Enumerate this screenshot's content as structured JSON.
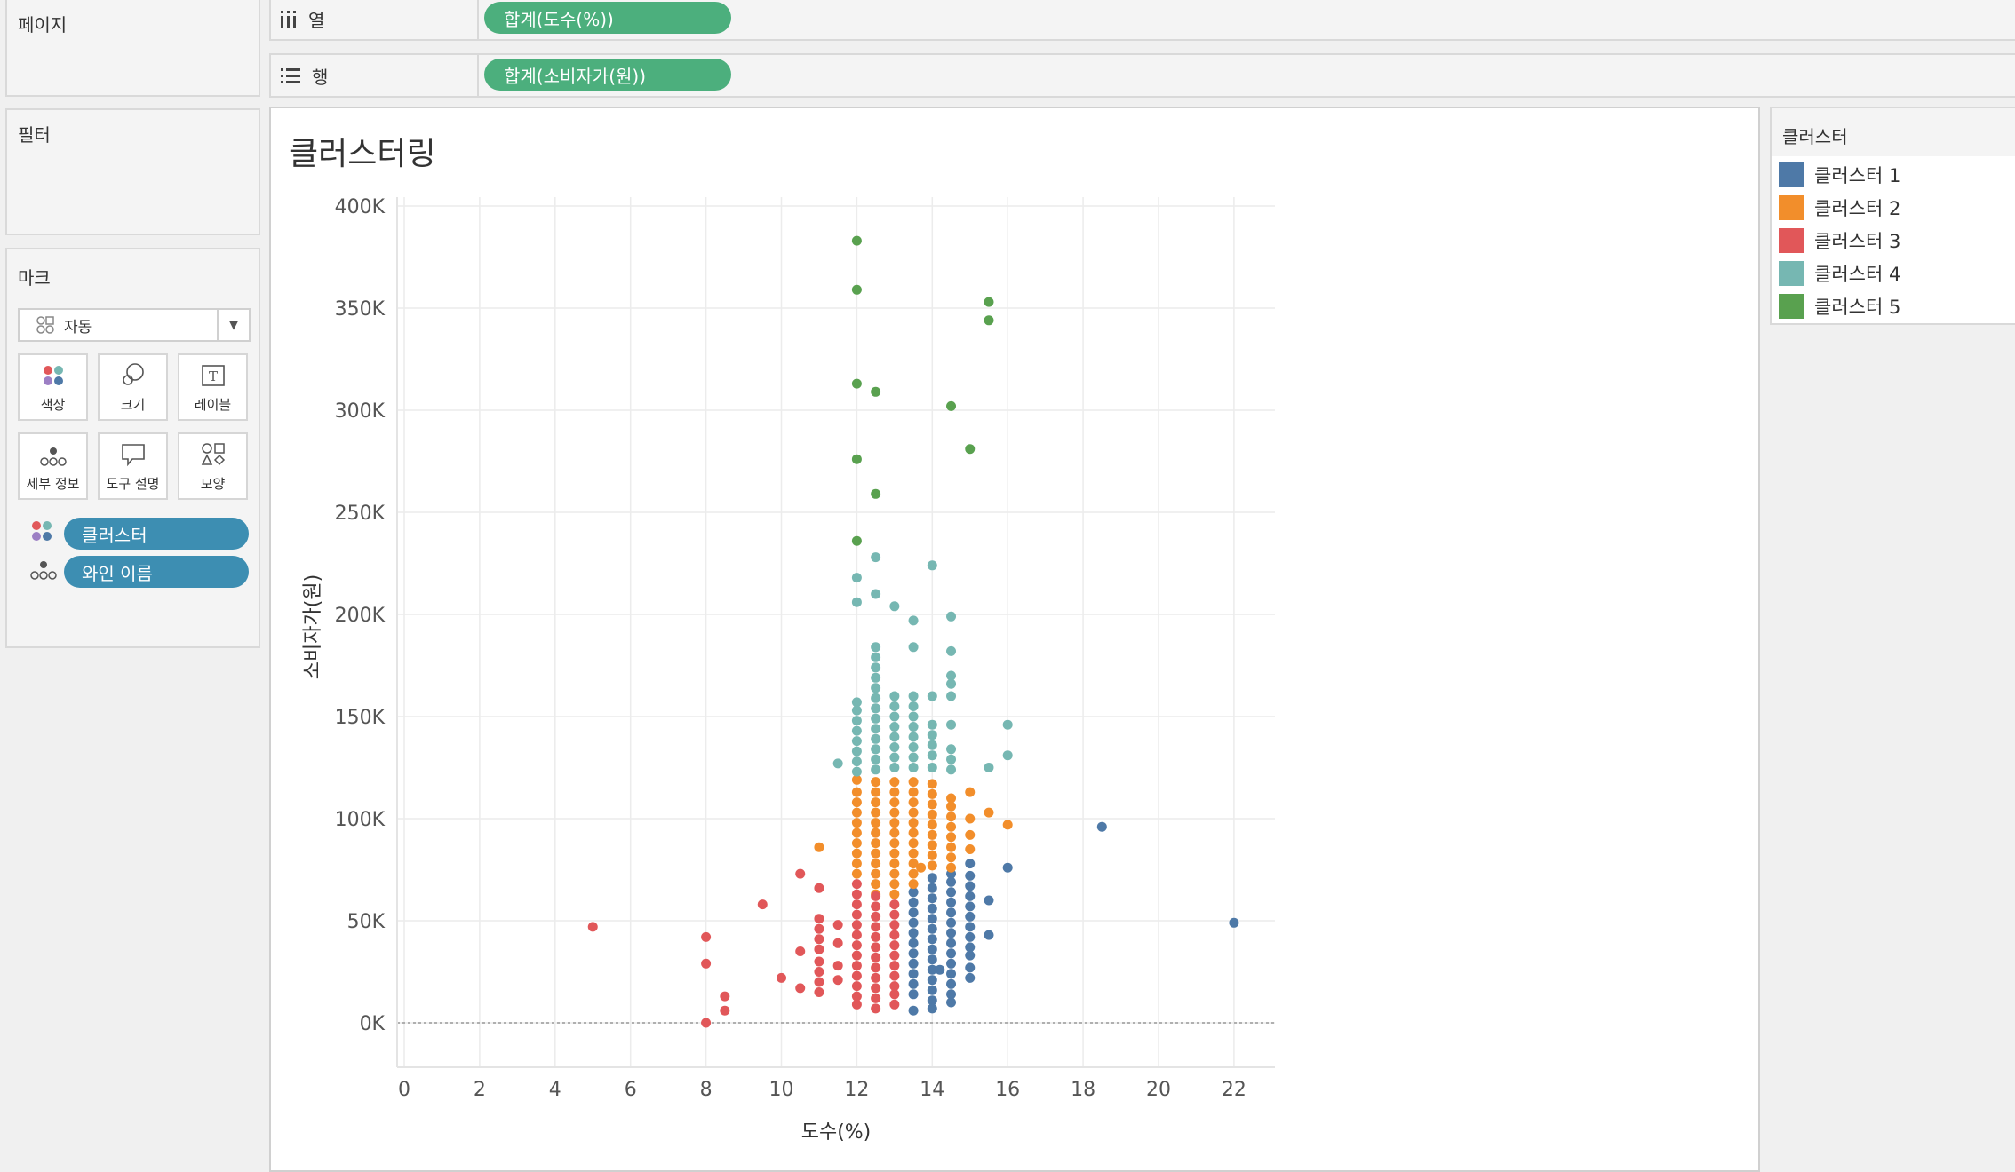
{
  "side": {
    "pages_title": "페이지",
    "filters_title": "필터",
    "marks_title": "마크",
    "mark_type": "자동",
    "buttons": [
      "색상",
      "크기",
      "레이블",
      "세부 정보",
      "도구 설명",
      "모양"
    ],
    "pills": [
      "클러스터",
      "와인 이름"
    ]
  },
  "shelves": {
    "columns": {
      "label": "열",
      "pill": "합계(도수(%))"
    },
    "rows": {
      "label": "행",
      "pill": "합계(소비자가(원))"
    }
  },
  "legend": {
    "title": "클러스터",
    "items": [
      {
        "label": "클러스터 1",
        "color": "#4e79a7"
      },
      {
        "label": "클러스터 2",
        "color": "#f28e2b"
      },
      {
        "label": "클러스터 3",
        "color": "#e15759"
      },
      {
        "label": "클러스터 4",
        "color": "#76b7b2"
      },
      {
        "label": "클러스터 5",
        "color": "#59a14f"
      }
    ]
  },
  "chart_data": {
    "type": "scatter",
    "title": "클러스터링",
    "xlabel": "도수(%)",
    "ylabel": "소비자가(원)",
    "xlim": [
      0,
      23
    ],
    "ylim": [
      -20000,
      400000
    ],
    "x_ticks": [
      0,
      2,
      4,
      6,
      8,
      10,
      12,
      14,
      16,
      18,
      20,
      22
    ],
    "y_ticks": [
      0,
      50000,
      100000,
      150000,
      200000,
      250000,
      300000,
      350000,
      400000
    ],
    "y_tick_labels": [
      "0K",
      "50K",
      "100K",
      "150K",
      "200K",
      "250K",
      "300K",
      "350K",
      "400K"
    ],
    "grid": true,
    "legend_position": "right",
    "series": [
      {
        "name": "클러스터 1",
        "color": "#4e79a7",
        "points": [
          [
            22,
            49000
          ],
          [
            18.5,
            96000
          ],
          [
            16,
            76000
          ],
          [
            15.5,
            60000
          ],
          [
            15.5,
            43000
          ],
          [
            15,
            78000
          ],
          [
            15,
            72000
          ],
          [
            15,
            67000
          ],
          [
            15,
            62000
          ],
          [
            15,
            57000
          ],
          [
            15,
            52000
          ],
          [
            15,
            47000
          ],
          [
            15,
            42000
          ],
          [
            15,
            37000
          ],
          [
            15,
            33000
          ],
          [
            15,
            27000
          ],
          [
            15,
            22000
          ],
          [
            14.5,
            73000
          ],
          [
            14.5,
            69000
          ],
          [
            14.5,
            64000
          ],
          [
            14.5,
            59000
          ],
          [
            14.5,
            54000
          ],
          [
            14.5,
            49000
          ],
          [
            14.5,
            44000
          ],
          [
            14.5,
            39000
          ],
          [
            14.5,
            34000
          ],
          [
            14.5,
            29000
          ],
          [
            14.5,
            24000
          ],
          [
            14.5,
            19000
          ],
          [
            14.5,
            14000
          ],
          [
            14.5,
            10000
          ],
          [
            14,
            71000
          ],
          [
            14,
            66000
          ],
          [
            14,
            61000
          ],
          [
            14,
            56000
          ],
          [
            14,
            51000
          ],
          [
            14,
            46000
          ],
          [
            14,
            41000
          ],
          [
            14,
            36000
          ],
          [
            14,
            31000
          ],
          [
            14,
            26000
          ],
          [
            14,
            21000
          ],
          [
            14,
            16000
          ],
          [
            14,
            11000
          ],
          [
            14,
            7000
          ],
          [
            13.5,
            64000
          ],
          [
            13.5,
            59000
          ],
          [
            13.5,
            54000
          ],
          [
            13.5,
            49000
          ],
          [
            13.5,
            44000
          ],
          [
            13.5,
            39000
          ],
          [
            13.5,
            34000
          ],
          [
            13.5,
            29000
          ],
          [
            13.5,
            24000
          ],
          [
            13.5,
            19000
          ],
          [
            13.5,
            14000
          ],
          [
            13.5,
            6000
          ],
          [
            14.2,
            26000
          ]
        ]
      },
      {
        "name": "클러스터 2",
        "color": "#f28e2b",
        "points": [
          [
            16,
            97000
          ],
          [
            15.5,
            103000
          ],
          [
            15,
            113000
          ],
          [
            15,
            100000
          ],
          [
            15,
            92000
          ],
          [
            15,
            85000
          ],
          [
            14.5,
            110000
          ],
          [
            14.5,
            106000
          ],
          [
            14.5,
            101000
          ],
          [
            14.5,
            96000
          ],
          [
            14.5,
            91000
          ],
          [
            14.5,
            86000
          ],
          [
            14.5,
            81000
          ],
          [
            14.5,
            76000
          ],
          [
            14,
            117000
          ],
          [
            14,
            112000
          ],
          [
            14,
            107000
          ],
          [
            14,
            102000
          ],
          [
            14,
            97000
          ],
          [
            14,
            92000
          ],
          [
            14,
            87000
          ],
          [
            14,
            82000
          ],
          [
            14,
            77000
          ],
          [
            13.5,
            118000
          ],
          [
            13.5,
            113000
          ],
          [
            13.5,
            108000
          ],
          [
            13.5,
            103000
          ],
          [
            13.5,
            98000
          ],
          [
            13.5,
            93000
          ],
          [
            13.5,
            88000
          ],
          [
            13.5,
            83000
          ],
          [
            13.5,
            78000
          ],
          [
            13.5,
            73000
          ],
          [
            13.5,
            68000
          ],
          [
            13,
            118000
          ],
          [
            13,
            113000
          ],
          [
            13,
            108000
          ],
          [
            13,
            103000
          ],
          [
            13,
            98000
          ],
          [
            13,
            93000
          ],
          [
            13,
            88000
          ],
          [
            13,
            83000
          ],
          [
            13,
            78000
          ],
          [
            13,
            73000
          ],
          [
            13,
            68000
          ],
          [
            13,
            63000
          ],
          [
            12.5,
            118000
          ],
          [
            12.5,
            113000
          ],
          [
            12.5,
            108000
          ],
          [
            12.5,
            103000
          ],
          [
            12.5,
            98000
          ],
          [
            12.5,
            93000
          ],
          [
            12.5,
            88000
          ],
          [
            12.5,
            83000
          ],
          [
            12.5,
            78000
          ],
          [
            12.5,
            73000
          ],
          [
            12.5,
            68000
          ],
          [
            12.5,
            63000
          ],
          [
            12,
            119000
          ],
          [
            12,
            113000
          ],
          [
            12,
            108000
          ],
          [
            12,
            103000
          ],
          [
            12,
            98000
          ],
          [
            12,
            93000
          ],
          [
            12,
            88000
          ],
          [
            12,
            83000
          ],
          [
            12,
            78000
          ],
          [
            12,
            73000
          ],
          [
            11,
            86000
          ],
          [
            13.7,
            76000
          ]
        ]
      },
      {
        "name": "클러스터 3",
        "color": "#e15759",
        "points": [
          [
            5,
            47000
          ],
          [
            8,
            42000
          ],
          [
            8,
            29000
          ],
          [
            8,
            0
          ],
          [
            8.5,
            13000
          ],
          [
            8.5,
            6000
          ],
          [
            9.5,
            58000
          ],
          [
            10,
            22000
          ],
          [
            10.5,
            73000
          ],
          [
            10.5,
            35000
          ],
          [
            10.5,
            17000
          ],
          [
            11,
            66000
          ],
          [
            11,
            51000
          ],
          [
            11,
            46000
          ],
          [
            11,
            41000
          ],
          [
            11,
            36000
          ],
          [
            11,
            30000
          ],
          [
            11,
            25000
          ],
          [
            11,
            20000
          ],
          [
            11,
            15000
          ],
          [
            11.5,
            48000
          ],
          [
            11.5,
            39000
          ],
          [
            11.5,
            28000
          ],
          [
            11.5,
            21000
          ],
          [
            12,
            68000
          ],
          [
            12,
            63000
          ],
          [
            12,
            58000
          ],
          [
            12,
            53000
          ],
          [
            12,
            48000
          ],
          [
            12,
            43000
          ],
          [
            12,
            38000
          ],
          [
            12,
            33000
          ],
          [
            12,
            28000
          ],
          [
            12,
            23000
          ],
          [
            12,
            18000
          ],
          [
            12,
            13000
          ],
          [
            12,
            9000
          ],
          [
            12.5,
            62000
          ],
          [
            12.5,
            57000
          ],
          [
            12.5,
            52000
          ],
          [
            12.5,
            47000
          ],
          [
            12.5,
            42000
          ],
          [
            12.5,
            37000
          ],
          [
            12.5,
            32000
          ],
          [
            12.5,
            27000
          ],
          [
            12.5,
            22000
          ],
          [
            12.5,
            17000
          ],
          [
            12.5,
            12000
          ],
          [
            12.5,
            7000
          ],
          [
            13,
            58000
          ],
          [
            13,
            53000
          ],
          [
            13,
            48000
          ],
          [
            13,
            43000
          ],
          [
            13,
            38000
          ],
          [
            13,
            33000
          ],
          [
            13,
            28000
          ],
          [
            13,
            23000
          ],
          [
            13,
            18000
          ],
          [
            13,
            14000
          ],
          [
            13,
            9000
          ]
        ]
      },
      {
        "name": "클러스터 4",
        "color": "#76b7b2",
        "points": [
          [
            12,
            218000
          ],
          [
            12,
            206000
          ],
          [
            12,
            157000
          ],
          [
            12,
            153000
          ],
          [
            12,
            148000
          ],
          [
            12,
            143000
          ],
          [
            12,
            138000
          ],
          [
            12,
            133000
          ],
          [
            12,
            128000
          ],
          [
            12,
            123000
          ],
          [
            11.5,
            127000
          ],
          [
            12.5,
            228000
          ],
          [
            12.5,
            210000
          ],
          [
            12.5,
            184000
          ],
          [
            12.5,
            179000
          ],
          [
            12.5,
            174000
          ],
          [
            12.5,
            169000
          ],
          [
            12.5,
            164000
          ],
          [
            12.5,
            159000
          ],
          [
            12.5,
            154000
          ],
          [
            12.5,
            149000
          ],
          [
            12.5,
            144000
          ],
          [
            12.5,
            139000
          ],
          [
            12.5,
            134000
          ],
          [
            12.5,
            129000
          ],
          [
            12.5,
            124000
          ],
          [
            13,
            204000
          ],
          [
            13,
            160000
          ],
          [
            13,
            155000
          ],
          [
            13,
            150000
          ],
          [
            13,
            145000
          ],
          [
            13,
            140000
          ],
          [
            13,
            135000
          ],
          [
            13,
            130000
          ],
          [
            13,
            125000
          ],
          [
            13.5,
            197000
          ],
          [
            13.5,
            184000
          ],
          [
            13.5,
            160000
          ],
          [
            13.5,
            155000
          ],
          [
            13.5,
            150000
          ],
          [
            13.5,
            145000
          ],
          [
            13.5,
            140000
          ],
          [
            13.5,
            135000
          ],
          [
            13.5,
            130000
          ],
          [
            13.5,
            125000
          ],
          [
            14,
            224000
          ],
          [
            14,
            160000
          ],
          [
            14,
            146000
          ],
          [
            14,
            141000
          ],
          [
            14,
            136000
          ],
          [
            14,
            131000
          ],
          [
            14,
            125000
          ],
          [
            14.5,
            199000
          ],
          [
            14.5,
            182000
          ],
          [
            14.5,
            170000
          ],
          [
            14.5,
            166000
          ],
          [
            14.5,
            160000
          ],
          [
            14.5,
            146000
          ],
          [
            14.5,
            134000
          ],
          [
            14.5,
            129000
          ],
          [
            14.5,
            124000
          ],
          [
            15.5,
            125000
          ],
          [
            16,
            146000
          ],
          [
            16,
            131000
          ]
        ]
      },
      {
        "name": "클러스터 5",
        "color": "#59a14f",
        "points": [
          [
            12,
            383000
          ],
          [
            12,
            359000
          ],
          [
            12,
            313000
          ],
          [
            12,
            276000
          ],
          [
            12,
            236000
          ],
          [
            12.5,
            309000
          ],
          [
            12.5,
            259000
          ],
          [
            14.5,
            302000
          ],
          [
            15,
            281000
          ],
          [
            15.5,
            353000
          ],
          [
            15.5,
            344000
          ]
        ]
      }
    ]
  }
}
